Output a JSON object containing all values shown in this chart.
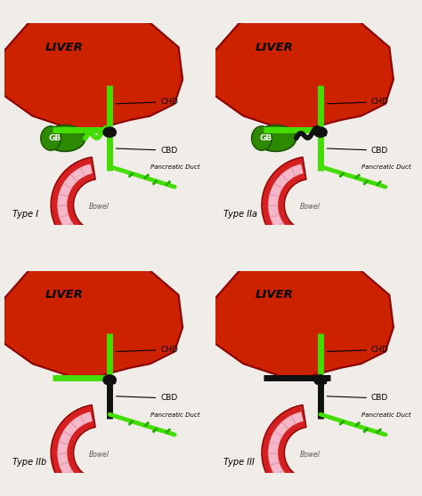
{
  "background_color": "#f0ece8",
  "panels": [
    {
      "label": "Type I",
      "row": 0,
      "col": 0,
      "has_gb": true,
      "chd_top_green": true,
      "horiz_left_green": true,
      "cbd_green": true,
      "horiz_right_green": false,
      "cystic_green": true
    },
    {
      "label": "Type IIa",
      "row": 0,
      "col": 1,
      "has_gb": true,
      "chd_top_green": true,
      "horiz_left_green": true,
      "cbd_green": true,
      "horiz_right_green": true,
      "cystic_green": false
    },
    {
      "label": "Type IIb",
      "row": 1,
      "col": 0,
      "has_gb": false,
      "chd_top_green": true,
      "horiz_left_green": true,
      "cbd_green": false,
      "horiz_right_green": false,
      "cystic_green": false
    },
    {
      "label": "Type III",
      "row": 1,
      "col": 1,
      "has_gb": false,
      "chd_top_green": false,
      "horiz_left_green": false,
      "cbd_green": false,
      "horiz_right_green": false,
      "cystic_green": false
    }
  ],
  "liver_color": "#cc2200",
  "liver_edge": "#8B0000",
  "gb_color_dark": "#1a5200",
  "gb_color_light": "#2d8a00",
  "bile_green": "#44dd00",
  "bile_green_dark": "#22aa00",
  "duct_black": "#111111",
  "bowel_outer": "#d42020",
  "bowel_inner_fill": "#f5b8c8",
  "bowel_stripe": "#e090a8",
  "label_color": "#111111"
}
